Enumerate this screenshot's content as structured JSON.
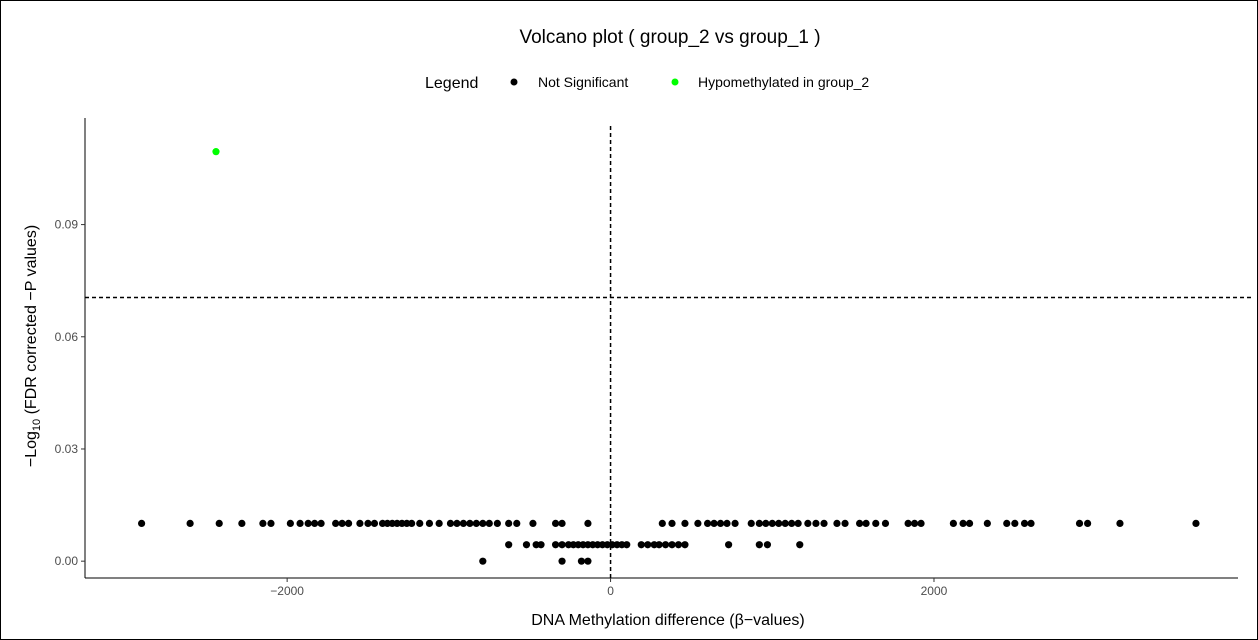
{
  "chart_data": {
    "type": "scatter",
    "title": "Volcano plot ( group_2 vs group_1 )",
    "xlabel": "DNA Methylation difference (β−values)",
    "ylabel_prefix": "−Log",
    "ylabel_sub": "10",
    "ylabel_suffix": " (FDR corrected −P values)",
    "xlim": [
      -3250,
      3880
    ],
    "ylim": [
      -0.0045,
      0.1185
    ],
    "x_ticks": [
      -2000,
      0,
      2000
    ],
    "x_tick_labels": [
      "−2000",
      "0",
      "2000"
    ],
    "y_ticks": [
      0.0,
      0.03,
      0.06,
      0.09
    ],
    "y_tick_labels": [
      "0.00",
      "0.03",
      "0.06",
      "0.09"
    ],
    "reference_lines": {
      "vertical_x": 0,
      "horizontal_y": 0.0705
    },
    "grid": false,
    "legend": {
      "title": "Legend",
      "position": "top",
      "entries": [
        {
          "label": "Not Significant",
          "color": "#000000"
        },
        {
          "label": "Hypomethylated in group_2",
          "color": "#00ff00"
        }
      ]
    },
    "series": [
      {
        "name": "Not Significant",
        "color": "#000000",
        "points": [
          [
            -2900,
            0.0101
          ],
          [
            -2600,
            0.0101
          ],
          [
            -2420,
            0.0101
          ],
          [
            -2280,
            0.0101
          ],
          [
            -2150,
            0.0101
          ],
          [
            -2100,
            0.0101
          ],
          [
            -1980,
            0.0101
          ],
          [
            -1920,
            0.0101
          ],
          [
            -1870,
            0.0101
          ],
          [
            -1830,
            0.0101
          ],
          [
            -1790,
            0.0101
          ],
          [
            -1700,
            0.0101
          ],
          [
            -1660,
            0.0101
          ],
          [
            -1620,
            0.0101
          ],
          [
            -1550,
            0.0101
          ],
          [
            -1500,
            0.0101
          ],
          [
            -1460,
            0.0101
          ],
          [
            -1410,
            0.0101
          ],
          [
            -1380,
            0.0101
          ],
          [
            -1350,
            0.0101
          ],
          [
            -1320,
            0.0101
          ],
          [
            -1290,
            0.0101
          ],
          [
            -1260,
            0.0101
          ],
          [
            -1230,
            0.0101
          ],
          [
            -1180,
            0.0101
          ],
          [
            -1120,
            0.0101
          ],
          [
            -1060,
            0.0101
          ],
          [
            -990,
            0.0101
          ],
          [
            -950,
            0.0101
          ],
          [
            -910,
            0.0101
          ],
          [
            -870,
            0.0101
          ],
          [
            -830,
            0.0101
          ],
          [
            -790,
            0.0101
          ],
          [
            -750,
            0.0101
          ],
          [
            -700,
            0.0101
          ],
          [
            -630,
            0.0101
          ],
          [
            -580,
            0.0101
          ],
          [
            -480,
            0.0101
          ],
          [
            -340,
            0.0101
          ],
          [
            -300,
            0.0101
          ],
          [
            -140,
            0.0101
          ],
          [
            320,
            0.0101
          ],
          [
            380,
            0.0101
          ],
          [
            460,
            0.0101
          ],
          [
            540,
            0.0101
          ],
          [
            600,
            0.0101
          ],
          [
            640,
            0.0101
          ],
          [
            680,
            0.0101
          ],
          [
            720,
            0.0101
          ],
          [
            770,
            0.0101
          ],
          [
            870,
            0.0101
          ],
          [
            920,
            0.0101
          ],
          [
            960,
            0.0101
          ],
          [
            1000,
            0.0101
          ],
          [
            1040,
            0.0101
          ],
          [
            1080,
            0.0101
          ],
          [
            1120,
            0.0101
          ],
          [
            1160,
            0.0101
          ],
          [
            1220,
            0.0101
          ],
          [
            1270,
            0.0101
          ],
          [
            1320,
            0.0101
          ],
          [
            1400,
            0.0101
          ],
          [
            1450,
            0.0101
          ],
          [
            1540,
            0.0101
          ],
          [
            1580,
            0.0101
          ],
          [
            1640,
            0.0101
          ],
          [
            1700,
            0.0101
          ],
          [
            1840,
            0.0101
          ],
          [
            1880,
            0.0101
          ],
          [
            1920,
            0.0101
          ],
          [
            2120,
            0.0101
          ],
          [
            2180,
            0.0101
          ],
          [
            2220,
            0.0101
          ],
          [
            2330,
            0.0101
          ],
          [
            2450,
            0.0101
          ],
          [
            2500,
            0.0101
          ],
          [
            2560,
            0.0101
          ],
          [
            2600,
            0.0101
          ],
          [
            2900,
            0.0101
          ],
          [
            2950,
            0.0101
          ],
          [
            3150,
            0.0101
          ],
          [
            3620,
            0.0101
          ],
          [
            -630,
            0.0044
          ],
          [
            -520,
            0.0044
          ],
          [
            -460,
            0.0044
          ],
          [
            -430,
            0.0044
          ],
          [
            -340,
            0.0044
          ],
          [
            -300,
            0.0044
          ],
          [
            -260,
            0.0044
          ],
          [
            -230,
            0.0044
          ],
          [
            -200,
            0.0044
          ],
          [
            -170,
            0.0044
          ],
          [
            -140,
            0.0044
          ],
          [
            -110,
            0.0044
          ],
          [
            -80,
            0.0044
          ],
          [
            -50,
            0.0044
          ],
          [
            -20,
            0.0044
          ],
          [
            10,
            0.0044
          ],
          [
            40,
            0.0044
          ],
          [
            70,
            0.0044
          ],
          [
            100,
            0.0044
          ],
          [
            190,
            0.0044
          ],
          [
            230,
            0.0044
          ],
          [
            270,
            0.0044
          ],
          [
            300,
            0.0044
          ],
          [
            340,
            0.0044
          ],
          [
            380,
            0.0044
          ],
          [
            420,
            0.0044
          ],
          [
            460,
            0.0044
          ],
          [
            730,
            0.0044
          ],
          [
            920,
            0.0044
          ],
          [
            970,
            0.0044
          ],
          [
            1170,
            0.0044
          ],
          [
            -790,
            0.0
          ],
          [
            -300,
            0.0
          ],
          [
            -180,
            0.0
          ],
          [
            -140,
            0.0
          ]
        ]
      },
      {
        "name": "Hypomethylated in group_2",
        "color": "#00ff00",
        "points": [
          [
            -2440,
            0.1095
          ]
        ]
      }
    ]
  }
}
